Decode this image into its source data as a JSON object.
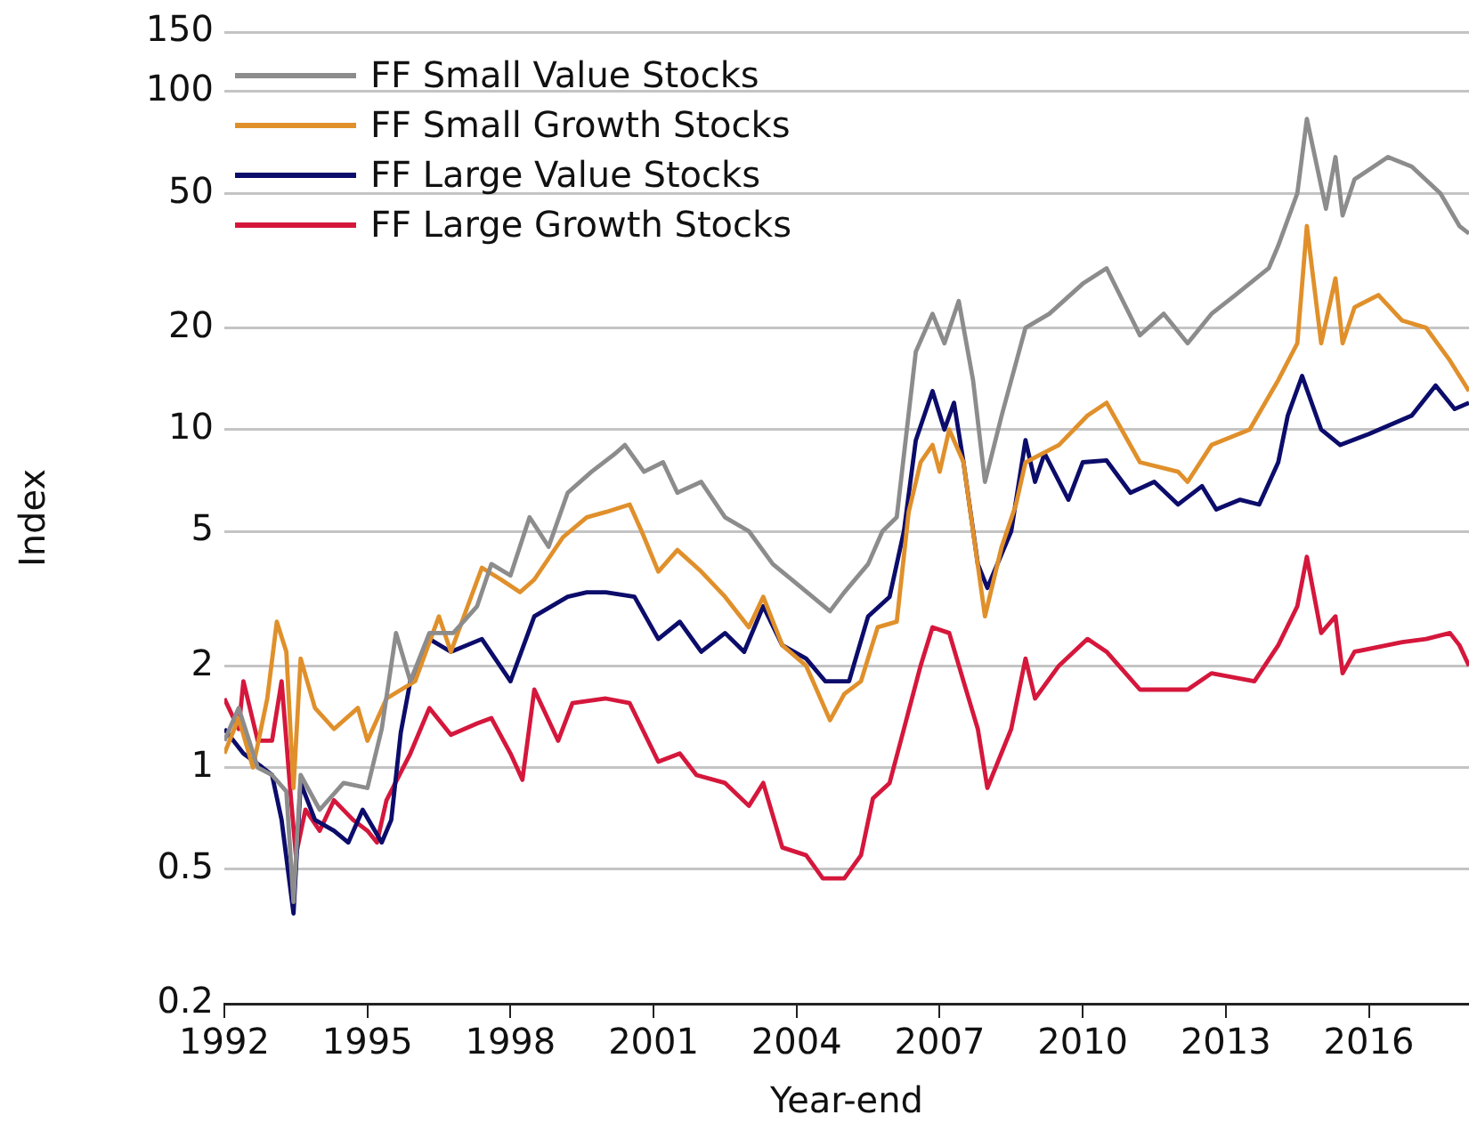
{
  "chart_data": {
    "type": "line",
    "xlabel": "Year-end",
    "ylabel": "Index",
    "log": "y",
    "grid": "y",
    "legend": "top left",
    "marker": "none",
    "line_style": "solid",
    "xlim": [
      1992,
      2018.1
    ],
    "xticks": [
      1992,
      1995,
      1998,
      2001,
      2004,
      2007,
      2010,
      2013,
      2016
    ],
    "ylim": [
      0.2,
      150
    ],
    "yticks": [
      0.2,
      0.5,
      1,
      2,
      5,
      10,
      20,
      50,
      100,
      150
    ],
    "series": [
      {
        "name": "FF Small Value Stocks",
        "color": "#8c8c8c",
        "x": [
          1992.0,
          1992.3,
          1992.7,
          1993.0,
          1993.3,
          1993.45,
          1993.6,
          1994.0,
          1994.5,
          1995.0,
          1995.3,
          1995.6,
          1995.9,
          1996.3,
          1996.8,
          1997.3,
          1997.6,
          1998.0,
          1998.4,
          1998.8,
          1999.2,
          1999.7,
          2000.2,
          2000.4,
          2000.8,
          2001.2,
          2001.5,
          2002.0,
          2002.5,
          2003.0,
          2003.5,
          2004.0,
          2004.7,
          2005.0,
          2005.5,
          2005.8,
          2006.1,
          2006.5,
          2006.85,
          2007.1,
          2007.4,
          2007.7,
          2007.95,
          2008.3,
          2008.8,
          2009.3,
          2010.0,
          2010.5,
          2011.2,
          2011.7,
          2012.2,
          2012.7,
          2013.2,
          2013.9,
          2014.1,
          2014.5,
          2014.7,
          2015.1,
          2015.3,
          2015.45,
          2015.7,
          2016.4,
          2016.9,
          2017.5,
          2017.9,
          2018.1
        ],
        "values": [
          1.2,
          1.5,
          1.0,
          0.95,
          0.85,
          0.4,
          0.95,
          0.75,
          0.9,
          0.87,
          1.3,
          2.5,
          1.8,
          2.5,
          2.5,
          3.0,
          4.0,
          3.7,
          5.5,
          4.5,
          6.5,
          7.5,
          8.5,
          9,
          7.5,
          8,
          6.5,
          7,
          5.5,
          5,
          4,
          3.5,
          2.9,
          3.3,
          4,
          5,
          5.5,
          17,
          22,
          18,
          24,
          14,
          7,
          11,
          20,
          22,
          27,
          30,
          19,
          22,
          18,
          22,
          25,
          30,
          35,
          50,
          83,
          45,
          64,
          43,
          55,
          64,
          60,
          50,
          40,
          38
        ]
      },
      {
        "name": "FF Small Growth Stocks",
        "color": "#e0902b",
        "x": [
          1992.0,
          1992.3,
          1992.6,
          1992.9,
          1993.1,
          1993.3,
          1993.45,
          1993.6,
          1993.9,
          1994.3,
          1994.8,
          1995.0,
          1995.4,
          1996.0,
          1996.5,
          1996.75,
          1997.4,
          1997.8,
          1998.2,
          1998.5,
          1999.1,
          1999.6,
          2000.0,
          2000.5,
          2000.75,
          2001.1,
          2001.5,
          2002.0,
          2002.5,
          2003.0,
          2003.3,
          2003.7,
          2004.2,
          2004.7,
          2005.0,
          2005.35,
          2005.7,
          2006.1,
          2006.35,
          2006.6,
          2006.85,
          2007.0,
          2007.2,
          2007.5,
          2007.7,
          2007.95,
          2008.3,
          2008.6,
          2008.8,
          2009.5,
          2010.1,
          2010.5,
          2011.2,
          2012.0,
          2012.2,
          2012.7,
          2013.5,
          2014.1,
          2014.5,
          2014.7,
          2015.0,
          2015.3,
          2015.45,
          2015.7,
          2016.2,
          2016.7,
          2017.2,
          2017.7,
          2018.1
        ],
        "values": [
          1.1,
          1.4,
          1.0,
          1.6,
          2.7,
          2.2,
          0.87,
          2.1,
          1.5,
          1.3,
          1.5,
          1.2,
          1.6,
          1.8,
          2.8,
          2.2,
          3.9,
          3.6,
          3.3,
          3.6,
          4.8,
          5.5,
          5.7,
          6,
          5,
          3.8,
          4.4,
          3.8,
          3.2,
          2.6,
          3.2,
          2.3,
          2.0,
          1.38,
          1.65,
          1.8,
          2.6,
          2.7,
          5.7,
          8,
          9,
          7.5,
          10,
          8,
          5,
          2.8,
          4.5,
          6,
          8,
          9,
          11,
          12,
          8,
          7.5,
          7,
          9,
          10,
          14,
          18,
          40,
          18,
          28,
          18,
          23,
          25,
          21,
          20,
          16,
          13
        ]
      },
      {
        "name": "FF Large Value Stocks",
        "color": "#0c0c6b",
        "x": [
          1992.0,
          1992.4,
          1992.8,
          1993.0,
          1993.2,
          1993.45,
          1993.6,
          1993.9,
          1994.3,
          1994.6,
          1994.9,
          1995.3,
          1995.5,
          1995.7,
          1995.9,
          1996.3,
          1996.75,
          1997.4,
          1998.0,
          1998.5,
          1999.2,
          1999.6,
          2000.0,
          2000.6,
          2001.1,
          2001.55,
          2002.0,
          2002.5,
          2002.9,
          2003.3,
          2003.7,
          2004.2,
          2004.6,
          2005.1,
          2005.5,
          2005.95,
          2006.25,
          2006.5,
          2006.85,
          2007.1,
          2007.3,
          2007.5,
          2007.8,
          2008.0,
          2008.5,
          2008.8,
          2009.0,
          2009.2,
          2009.7,
          2010.0,
          2010.5,
          2011.0,
          2011.5,
          2012.0,
          2012.5,
          2012.8,
          2013.3,
          2013.7,
          2014.1,
          2014.3,
          2014.6,
          2015.0,
          2015.4,
          2016.0,
          2016.9,
          2017.4,
          2017.8,
          2018.1
        ],
        "values": [
          1.3,
          1.1,
          1.0,
          0.95,
          0.7,
          0.37,
          0.9,
          0.7,
          0.65,
          0.6,
          0.75,
          0.6,
          0.7,
          1.27,
          1.8,
          2.4,
          2.2,
          2.4,
          1.8,
          2.8,
          3.2,
          3.3,
          3.3,
          3.2,
          2.4,
          2.7,
          2.2,
          2.5,
          2.2,
          3.0,
          2.3,
          2.1,
          1.8,
          1.8,
          2.8,
          3.2,
          5,
          9.3,
          13,
          10,
          12,
          8,
          4,
          3.4,
          5,
          9.3,
          7,
          8.5,
          6.2,
          8,
          8.1,
          6.5,
          7,
          6,
          6.8,
          5.8,
          6.2,
          6,
          8,
          11,
          14.4,
          10,
          9,
          9.7,
          11,
          13.5,
          11.5,
          12
        ]
      },
      {
        "name": "FF Large Growth Stocks",
        "color": "#d5173c",
        "x": [
          1992.0,
          1992.3,
          1992.4,
          1992.7,
          1993.0,
          1993.2,
          1993.4,
          1993.5,
          1993.7,
          1994.0,
          1994.3,
          1994.7,
          1995.0,
          1995.2,
          1995.4,
          1995.9,
          1996.3,
          1996.75,
          1997.3,
          1997.6,
          1998.0,
          1998.25,
          1998.5,
          1999.0,
          1999.3,
          2000.0,
          2000.5,
          2001.1,
          2001.55,
          2001.9,
          2002.5,
          2003.0,
          2003.3,
          2003.7,
          2004.2,
          2004.55,
          2005.0,
          2005.35,
          2005.6,
          2005.95,
          2006.25,
          2006.6,
          2006.85,
          2007.2,
          2007.5,
          2007.8,
          2008.0,
          2008.5,
          2008.8,
          2009.0,
          2009.5,
          2010.1,
          2010.5,
          2011.2,
          2012.2,
          2012.7,
          2013.6,
          2014.1,
          2014.5,
          2014.7,
          2015.0,
          2015.3,
          2015.45,
          2015.7,
          2016.7,
          2017.2,
          2017.7,
          2017.9,
          2018.1
        ],
        "values": [
          1.6,
          1.3,
          1.8,
          1.2,
          1.2,
          1.8,
          0.8,
          0.55,
          0.75,
          0.65,
          0.8,
          0.7,
          0.65,
          0.6,
          0.8,
          1.1,
          1.5,
          1.25,
          1.35,
          1.4,
          1.1,
          0.92,
          1.7,
          1.2,
          1.55,
          1.6,
          1.55,
          1.04,
          1.1,
          0.95,
          0.9,
          0.77,
          0.9,
          0.58,
          0.55,
          0.47,
          0.47,
          0.55,
          0.81,
          0.9,
          1.3,
          2.0,
          2.6,
          2.5,
          1.8,
          1.3,
          0.87,
          1.3,
          2.1,
          1.6,
          2.0,
          2.4,
          2.2,
          1.7,
          1.7,
          1.9,
          1.8,
          2.3,
          3.0,
          4.2,
          2.5,
          2.8,
          1.9,
          2.2,
          2.35,
          2.4,
          2.5,
          2.3,
          2.0
        ]
      }
    ]
  }
}
